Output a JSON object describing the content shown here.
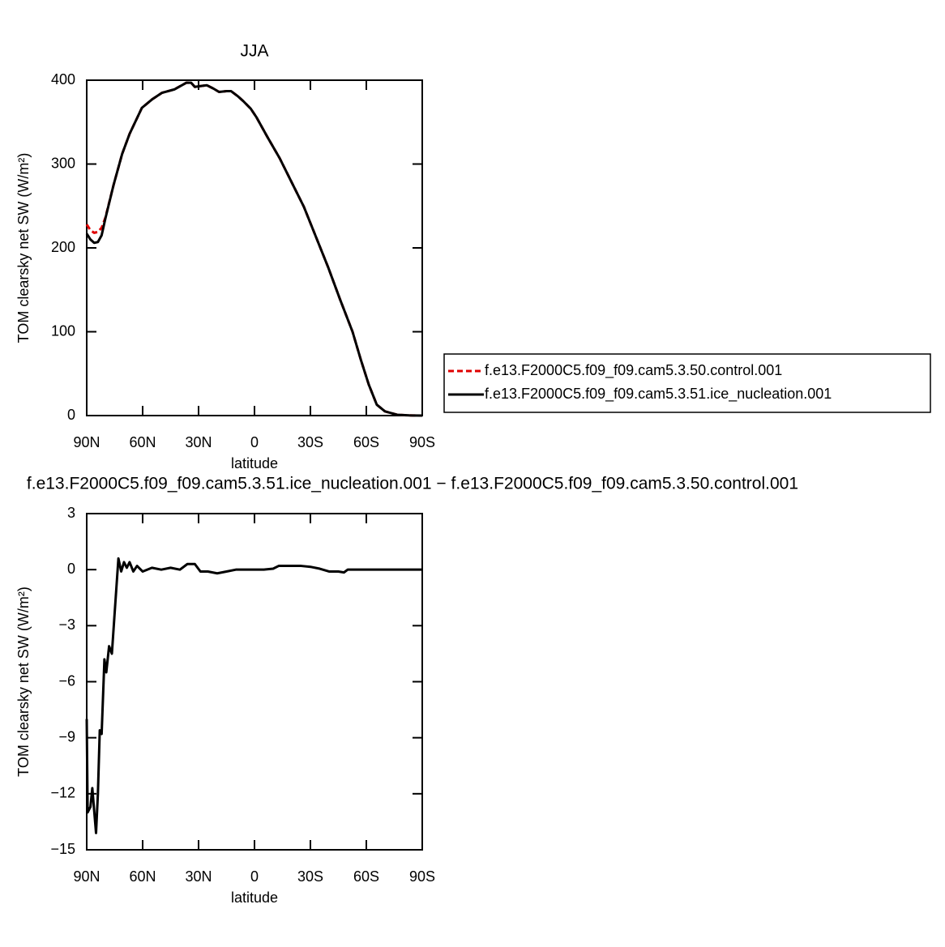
{
  "chart_data": [
    {
      "type": "line",
      "title": "JJA",
      "xlabel": "latitude",
      "ylabel": "TOM clearsky net SW (W/m²)",
      "x": [
        90,
        88,
        86,
        84,
        82,
        80,
        75.6,
        71,
        67,
        60.4,
        55,
        49.6,
        43,
        36.5,
        34,
        32,
        29,
        25.6,
        22,
        19,
        15,
        12.6,
        9,
        6,
        2,
        -1,
        -7,
        -13.5,
        -20,
        -26.5,
        -33,
        -39.5,
        -46,
        -52.6,
        -57,
        -61.3,
        -65.6,
        -70,
        -76.5,
        -83,
        -90
      ],
      "series": [
        {
          "name": "f.e13.F2000C5.f09_f09.cam5.3.50.control.001",
          "color": "#e00000",
          "style": "dashed",
          "values": [
            228,
            221,
            218,
            219,
            224,
            236,
            275,
            312,
            336,
            367,
            377,
            385,
            389,
            397,
            397,
            392,
            393,
            394,
            390,
            386,
            387,
            387,
            381,
            375,
            366,
            356,
            332,
            307,
            278,
            249,
            213,
            177,
            138,
            100,
            67,
            37,
            13,
            5,
            1,
            0.2,
            0
          ]
        },
        {
          "name": "f.e13.F2000C5.f09_f09.cam5.3.51.ice_nucleation.001",
          "color": "#000000",
          "style": "solid",
          "values": [
            217,
            210,
            206,
            207,
            215,
            235,
            275,
            312,
            336,
            367,
            377,
            385,
            389,
            397,
            397,
            392,
            393,
            394,
            390,
            386,
            387,
            387,
            381,
            375,
            366,
            356,
            332,
            307,
            278,
            249,
            213,
            177,
            138,
            100,
            67,
            37,
            13,
            5,
            1,
            0.2,
            0
          ]
        }
      ],
      "xlim": [
        90,
        -90
      ],
      "xticks": [
        {
          "value": 90,
          "label": "90N"
        },
        {
          "value": 60,
          "label": "60N"
        },
        {
          "value": 30,
          "label": "30N"
        },
        0,
        {
          "value": -30,
          "label": "30S"
        },
        {
          "value": -60,
          "label": "60S"
        },
        {
          "value": -90,
          "label": "90S"
        }
      ],
      "ylim": [
        0,
        400
      ],
      "yticks": [
        0,
        100,
        200,
        300,
        400
      ],
      "legend": "right"
    },
    {
      "type": "line",
      "title": "f.e13.F2000C5.f09_f09.cam5.3.51.ice_nucleation.001 − f.e13.F2000C5.f09_f09.cam5.3.50.control.001",
      "xlabel": "latitude",
      "ylabel": "TOM clearsky net SW (W/m²)",
      "x": [
        90,
        89.5,
        88,
        87,
        86,
        85,
        84,
        83,
        82,
        80.5,
        79.5,
        78,
        76.5,
        75,
        73,
        71.5,
        70,
        68.5,
        67,
        65,
        63,
        60,
        55,
        50,
        45,
        40,
        36,
        32,
        29,
        25,
        20,
        15,
        10,
        5,
        0,
        -5,
        -10,
        -13,
        -20,
        -25,
        -30,
        -35,
        -40,
        -45,
        -48,
        -50,
        -55,
        -60,
        -70,
        -80,
        -90
      ],
      "series": [
        {
          "color": "#000000",
          "style": "solid",
          "values": [
            -8,
            -13,
            -12.7,
            -11.7,
            -12.9,
            -14.1,
            -12,
            -8.6,
            -8.8,
            -4.8,
            -5.5,
            -4.1,
            -4.5,
            -2.3,
            0.6,
            -0.1,
            0.4,
            0.1,
            0.4,
            -0.1,
            0.2,
            -0.1,
            0.1,
            0,
            0.1,
            0,
            0.3,
            0.3,
            -0.1,
            -0.1,
            -0.2,
            -0.1,
            0,
            0,
            0,
            0,
            0.05,
            0.2,
            0.2,
            0.2,
            0.15,
            0.05,
            -0.1,
            -0.1,
            -0.15,
            0,
            0,
            0,
            0,
            0,
            0
          ]
        }
      ],
      "xlim": [
        90,
        -90
      ],
      "xticks": [
        {
          "value": 90,
          "label": "90N"
        },
        {
          "value": 60,
          "label": "60N"
        },
        {
          "value": 30,
          "label": "30N"
        },
        0,
        {
          "value": -30,
          "label": "30S"
        },
        {
          "value": -60,
          "label": "60S"
        },
        {
          "value": -90,
          "label": "90S"
        }
      ],
      "ylim": [
        -15,
        3
      ],
      "yticks": [
        {
          "value": -15,
          "label": "−15"
        },
        {
          "value": -12,
          "label": "−12"
        },
        {
          "value": -9,
          "label": "−9"
        },
        {
          "value": -6,
          "label": "−6"
        },
        {
          "value": -3,
          "label": "−3"
        },
        0,
        3
      ]
    }
  ]
}
